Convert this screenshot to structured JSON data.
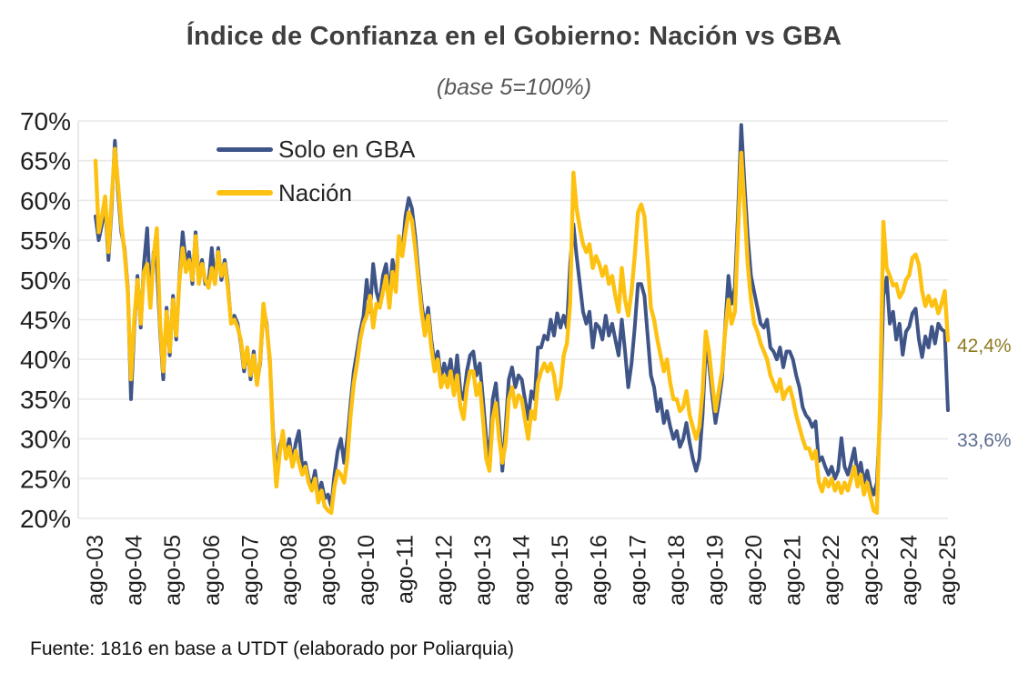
{
  "title": "Índice de Confianza en el Gobierno: Nación vs GBA",
  "subtitle": "(base 5=100%)",
  "footer": {
    "source": "Fuente: 1816 en base a UTDT (elaborado por Poliarquia)"
  },
  "colors": {
    "gba_line": "#3F5588",
    "nacion_line": "#FDC112",
    "grid": "#e9e9e9",
    "axis_line": "#d9d9d9",
    "axis_text": "#1f1f1f",
    "end_label_nacion": "#8E7A20",
    "end_label_gba": "#5C6C90"
  },
  "chart_data": {
    "type": "line",
    "x_unit": "month",
    "x_start": "ago-03",
    "x_end": "ago-25",
    "x_tick_labels": [
      "ago-03",
      "ago-04",
      "ago-05",
      "ago-06",
      "ago-07",
      "ago-08",
      "ago-09",
      "ago-10",
      "ago-11",
      "ago-12",
      "ago-13",
      "ago-14",
      "ago-15",
      "ago-16",
      "ago-17",
      "ago-18",
      "ago-19",
      "ago-20",
      "ago-21",
      "ago-22",
      "ago-23",
      "ago-24",
      "ago-25"
    ],
    "y_tick_labels": [
      "70%",
      "65%",
      "60%",
      "55%",
      "50%",
      "45%",
      "40%",
      "35%",
      "30%",
      "25%",
      "20%"
    ],
    "ylim": [
      20,
      70
    ],
    "grid": true,
    "legend_position": "top-left-inside",
    "series": [
      {
        "name": "Solo en GBA",
        "color_key": "gba_line",
        "end_label": "33,6%",
        "values": [
          58,
          55,
          57,
          59.5,
          52.5,
          59,
          67.5,
          61,
          56,
          54,
          49,
          35,
          44,
          50.5,
          44,
          52,
          56.5,
          47.5,
          53.5,
          52,
          43.5,
          37.5,
          46.5,
          40.5,
          48,
          42.5,
          50.5,
          56,
          52,
          53.5,
          49.5,
          56,
          50,
          52.5,
          49.5,
          49.5,
          54,
          49.5,
          54,
          50,
          52.5,
          49.5,
          44.5,
          45.5,
          44.5,
          42,
          38.5,
          41.5,
          37.5,
          41,
          37,
          39.5,
          46.5,
          44.5,
          39.5,
          31,
          25,
          29,
          30.5,
          28,
          30,
          27,
          29.5,
          31,
          26.5,
          27,
          25,
          24,
          26,
          23,
          24.5,
          22.5,
          23,
          21.5,
          25.5,
          28.5,
          30,
          27,
          30,
          34.5,
          38.5,
          41,
          43.5,
          45.5,
          50,
          46,
          52,
          48.5,
          47,
          50.5,
          52,
          48,
          52.5,
          50,
          55,
          53.5,
          58,
          60.3,
          59,
          55.5,
          51,
          47,
          44,
          46.5,
          42.5,
          39.5,
          41,
          37.5,
          39.5,
          38,
          40,
          36.5,
          40.5,
          36,
          35,
          38.5,
          40.5,
          41,
          38,
          39.5,
          35,
          30,
          27.7,
          35,
          37,
          32,
          26,
          31.5,
          37.5,
          39,
          36.5,
          38,
          37.5,
          35,
          32.5,
          36,
          35,
          41.5,
          41.5,
          43,
          42.5,
          45,
          43,
          45.8,
          44,
          45.5,
          44,
          52,
          57,
          53,
          49.5,
          46,
          44.5,
          46,
          41.5,
          44.5,
          44,
          42.5,
          45.5,
          43,
          44.5,
          42.5,
          40.5,
          45,
          41,
          36.5,
          39.5,
          44,
          49.5,
          49.5,
          48,
          43,
          38,
          36.5,
          33.5,
          35,
          32,
          33.5,
          31.5,
          30,
          31,
          29,
          30,
          32,
          29.5,
          27.5,
          26,
          27.5,
          33,
          41.5,
          39.5,
          35.5,
          32,
          34.5,
          37.5,
          44,
          50.5,
          47,
          49,
          58.5,
          69.5,
          62,
          55.5,
          50.5,
          48.5,
          46.5,
          44.5,
          44,
          45,
          41.5,
          41,
          40,
          41.5,
          39,
          41,
          41,
          40,
          38,
          36.5,
          34,
          33,
          32.5,
          31.5,
          32.2,
          27.2,
          27.7,
          26.5,
          25.5,
          26.5,
          25,
          26,
          30.1,
          26.5,
          25.5,
          27,
          28.8,
          25.5,
          27,
          24.5,
          26,
          24,
          23,
          24.5,
          33,
          48,
          50.3,
          44.5,
          46,
          42.5,
          44.5,
          40.6,
          43.5,
          44.1,
          45.8,
          46.4,
          42.5,
          40.3,
          42.9,
          41.5,
          44.1,
          42,
          44.5,
          43.8,
          43.5,
          33.6
        ]
      },
      {
        "name": "Nación",
        "color_key": "nacion_line",
        "end_label": "42,4%",
        "values": [
          65,
          56,
          58,
          60.5,
          53.5,
          60,
          66.5,
          62,
          57,
          53.5,
          48.5,
          37.5,
          45,
          50,
          44.5,
          51,
          52,
          46.5,
          53,
          56.5,
          44.5,
          38.5,
          46,
          41,
          47.5,
          43,
          50,
          54,
          51,
          52.5,
          50,
          55.5,
          49.5,
          52,
          50,
          49,
          51.5,
          49.5,
          53.5,
          50.5,
          52,
          49,
          44.5,
          45,
          44,
          42.5,
          39,
          41.5,
          38,
          40.5,
          36.8,
          40,
          47,
          44,
          40,
          30,
          24,
          28,
          31,
          27.5,
          29,
          26.5,
          28.5,
          27,
          25.5,
          26.5,
          24.5,
          23.5,
          25,
          22,
          23.5,
          21.5,
          21,
          20.7,
          24,
          26,
          25.5,
          24.5,
          27.5,
          33,
          37,
          39.5,
          42.5,
          44.5,
          45.5,
          48,
          44,
          47,
          46.5,
          48.5,
          50.5,
          46.5,
          51,
          48.5,
          55.5,
          53,
          56,
          58.5,
          57.5,
          54,
          50,
          46,
          43,
          45.5,
          41.5,
          38.5,
          40,
          36.5,
          38,
          36.5,
          38.5,
          35.5,
          38,
          34,
          32.5,
          36.5,
          38.5,
          38.5,
          35.5,
          37,
          32.5,
          27.5,
          26,
          32.5,
          34.5,
          30,
          27,
          29.5,
          35,
          36.5,
          34,
          35.5,
          35,
          32.5,
          30,
          33.5,
          32.5,
          37,
          38.5,
          39.5,
          38.5,
          39.5,
          38,
          35,
          36.5,
          40.5,
          42,
          47,
          63.5,
          59,
          56.5,
          54.5,
          53.5,
          54.5,
          51.5,
          53,
          52,
          50.5,
          51.7,
          49.5,
          50.5,
          48,
          46,
          51.5,
          47.5,
          45.5,
          48.5,
          53,
          58.5,
          59.5,
          58,
          52.5,
          46.5,
          45,
          42.5,
          40.5,
          38.5,
          40,
          37,
          35,
          35,
          33.5,
          34,
          36,
          33,
          31.5,
          30,
          31.5,
          36,
          43.5,
          41,
          37,
          33.5,
          36,
          38.5,
          43.5,
          47.5,
          44.5,
          46,
          56,
          66,
          59,
          52,
          47.5,
          44.5,
          43.5,
          42,
          41,
          40,
          38,
          37,
          36,
          37.5,
          35,
          36,
          36.5,
          35,
          33,
          31.5,
          30,
          28.8,
          28.8,
          27.5,
          28.5,
          24.6,
          23.4,
          25,
          24,
          25,
          23.5,
          24.5,
          23.2,
          24.5,
          23.5,
          25,
          26.5,
          24,
          25.5,
          23,
          24.5,
          22.7,
          21,
          20.7,
          35,
          57.3,
          51.5,
          50.5,
          49.3,
          49.5,
          47.8,
          48.5,
          50,
          50.6,
          52.8,
          53.2,
          51.9,
          48.6,
          46.7,
          48,
          46.7,
          47.5,
          45.8,
          47,
          48.6,
          42.4
        ]
      }
    ]
  }
}
